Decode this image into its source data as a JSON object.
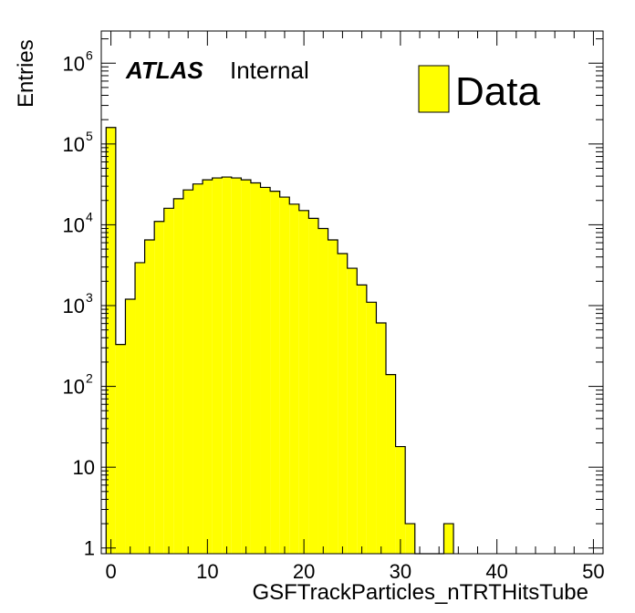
{
  "chart_data": {
    "type": "bar",
    "title": "",
    "xlabel": "GSFTrackParticles_nTRTHitsTube",
    "ylabel": "Entries",
    "xlim": [
      -1,
      51
    ],
    "ylim": [
      0.85,
      2500000
    ],
    "yscale": "log",
    "grid": false,
    "legend_position": "top-right",
    "x_ticks": [
      0,
      10,
      20,
      30,
      40,
      50
    ],
    "y_ticks": [
      {
        "value": 1,
        "base": "1",
        "exp": ""
      },
      {
        "value": 10,
        "base": "10",
        "exp": ""
      },
      {
        "value": 100,
        "base": "10",
        "exp": "2"
      },
      {
        "value": 1000,
        "base": "10",
        "exp": "3"
      },
      {
        "value": 10000,
        "base": "10",
        "exp": "4"
      },
      {
        "value": 100000,
        "base": "10",
        "exp": "5"
      },
      {
        "value": 1000000,
        "base": "10",
        "exp": "6"
      }
    ],
    "bin_width": 1,
    "bin_starts": [
      -0.5,
      0.5,
      1.5,
      2.5,
      3.5,
      4.5,
      5.5,
      6.5,
      7.5,
      8.5,
      9.5,
      10.5,
      11.5,
      12.5,
      13.5,
      14.5,
      15.5,
      16.5,
      17.5,
      18.5,
      19.5,
      20.5,
      21.5,
      22.5,
      23.5,
      24.5,
      25.5,
      26.5,
      27.5,
      28.5,
      29.5,
      30.5,
      31.5,
      32.5,
      33.5,
      34.5
    ],
    "series": [
      {
        "name": "Data",
        "values": [
          160000,
          330,
          1200,
          3400,
          6500,
          11000,
          16000,
          21000,
          27000,
          32000,
          36000,
          38000,
          39000,
          38000,
          36000,
          33000,
          29000,
          26000,
          22000,
          18000,
          15000,
          12000,
          9000,
          6500,
          4400,
          2900,
          1800,
          1100,
          610,
          140,
          18,
          2,
          0,
          0,
          0,
          2
        ],
        "color": "#ffff00"
      }
    ]
  },
  "annotation": {
    "experiment": "ATLAS",
    "status": "Internal"
  },
  "legend": {
    "label": "Data"
  },
  "colors": {
    "fill": "#ffff00",
    "line": "#000000"
  }
}
